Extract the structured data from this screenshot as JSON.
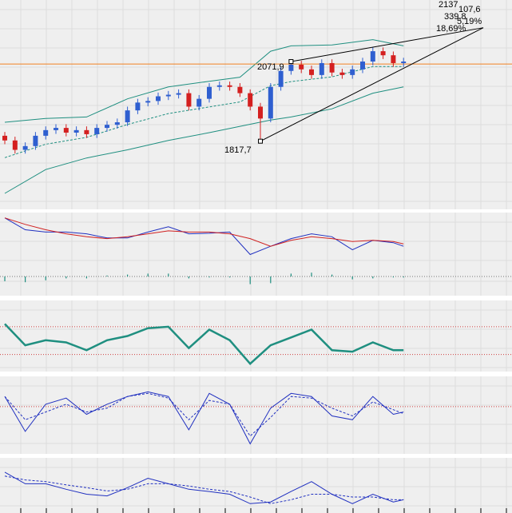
{
  "chart_data": [
    {
      "type": "candlestick",
      "x": [
        0,
        1,
        2,
        3,
        4,
        5,
        6,
        7,
        8,
        9,
        10,
        11,
        12,
        13,
        14,
        15,
        16,
        17,
        18,
        19,
        20,
        21,
        22,
        23,
        24,
        25,
        26,
        27,
        28,
        29,
        30,
        31,
        32,
        33,
        34,
        35,
        36,
        37,
        38,
        39
      ],
      "open": [
        1835,
        1820,
        1790,
        1802,
        1835,
        1853,
        1860,
        1845,
        1853,
        1840,
        1860,
        1870,
        1878,
        1916,
        1941,
        1946,
        1961,
        1966,
        1971,
        1928,
        1953,
        1991,
        1996,
        1991,
        1971,
        1928,
        1890,
        1991,
        2042,
        2062,
        2047,
        2029,
        2067,
        2037,
        2029,
        2047,
        2072,
        2105,
        2092,
        2067
      ],
      "high": [
        1847,
        1832,
        1814,
        1847,
        1865,
        1872,
        1872,
        1865,
        1865,
        1872,
        1882,
        1890,
        1928,
        1953,
        1958,
        1973,
        1978,
        1983,
        1983,
        1965,
        2003,
        2008,
        2008,
        2003,
        1983,
        1940,
        2003,
        2054,
        2071.9,
        2074,
        2059,
        2079,
        2079,
        2049,
        2059,
        2084,
        2117,
        2117,
        2104,
        2084
      ],
      "low": [
        1808,
        1778,
        1778,
        1790,
        1823,
        1841,
        1833,
        1833,
        1828,
        1828,
        1848,
        1858,
        1866,
        1904,
        1929,
        1934,
        1949,
        1954,
        1916,
        1916,
        1941,
        1979,
        1979,
        1959,
        1916,
        1817.7,
        1878,
        1979,
        2030,
        2035,
        2017,
        2017,
        2025,
        2017,
        2017,
        2035,
        2060,
        2080,
        2055,
        2055
      ],
      "close": [
        1820,
        1790,
        1802,
        1835,
        1853,
        1860,
        1845,
        1853,
        1840,
        1860,
        1870,
        1878,
        1916,
        1941,
        1946,
        1961,
        1966,
        1971,
        1928,
        1953,
        1991,
        1996,
        1991,
        1971,
        1928,
        1890,
        1991,
        2042,
        2062,
        2047,
        2029,
        2067,
        2037,
        2029,
        2047,
        2072,
        2105,
        2092,
        2067,
        2072
      ],
      "up_color": "#2f5fd0",
      "down_color": "#d42020",
      "bands_x": [
        0,
        4,
        8,
        12,
        16,
        20,
        23,
        26,
        28,
        32,
        36,
        39
      ],
      "bands": [
        {
          "color": "#1f8f80",
          "values": [
            1878,
            1890,
            1895,
            1953,
            1991,
            2009,
            2022,
            2105,
            2122,
            2125,
            2142,
            2122
          ]
        },
        {
          "color": "#1f8f80",
          "dash": true,
          "values": [
            1765,
            1808,
            1830,
            1871,
            1906,
            1927,
            1943,
            1995,
            2008,
            2023,
            2056,
            2056
          ]
        },
        {
          "color": "#1f8f80",
          "values": [
            1651,
            1727,
            1764,
            1790,
            1820,
            1845,
            1865,
            1885,
            1895,
            1921,
            1971,
            1991
          ]
        }
      ],
      "hline": 2064,
      "hline_color": "#f08020",
      "trendlines": [
        {
          "x": [
            25,
            46.8
          ],
          "y": [
            1817.7,
            2180
          ]
        },
        {
          "x": [
            28,
            46.8
          ],
          "y": [
            2071.9,
            2180
          ]
        }
      ],
      "annotations": [
        "2137",
        "107,6",
        "339,8",
        "5,19%",
        "18,69%",
        "2071,9",
        "1817,7"
      ],
      "xlim": [
        -0.47,
        49.61
      ],
      "ylim": [
        1600,
        2268.5
      ]
    },
    {
      "type": "line",
      "x": [
        0,
        2,
        4,
        6,
        8,
        10,
        12,
        14,
        16,
        18,
        20,
        22,
        24,
        26,
        28,
        30,
        32,
        34,
        36,
        38,
        39
      ],
      "series": [
        {
          "color": "#2030c0",
          "values": [
            91,
            71,
            67,
            67,
            64,
            57,
            57,
            67,
            76,
            64,
            65,
            67,
            29,
            43,
            56,
            64,
            59,
            37,
            53,
            49,
            43
          ]
        },
        {
          "color": "#d02020",
          "values": [
            91,
            80,
            71,
            64,
            59,
            56,
            59,
            64,
            69,
            67,
            67,
            64,
            56,
            43,
            53,
            59,
            56,
            51,
            53,
            51,
            47
          ]
        }
      ],
      "xlim": [
        -0.47,
        49.61
      ],
      "ylim": [
        0,
        100
      ]
    },
    {
      "type": "bar",
      "x": [
        0,
        2,
        4,
        6,
        8,
        10,
        12,
        14,
        16,
        18,
        20,
        22,
        24,
        26,
        28,
        30,
        32,
        34,
        36,
        38,
        39
      ],
      "values": [
        -5,
        -6,
        -4,
        -2,
        -2,
        1,
        2,
        3,
        3,
        -2,
        -1,
        -1,
        -8,
        -7,
        3,
        4,
        2,
        -3,
        -2,
        -1,
        -1
      ],
      "color": "#1f8f80",
      "xlim": [
        -0.47,
        49.61
      ],
      "ylim": [
        -20,
        5
      ]
    },
    {
      "type": "line",
      "x": [
        0,
        2,
        4,
        6,
        8,
        10,
        12,
        14,
        16,
        18,
        20,
        22,
        24,
        26,
        28,
        30,
        32,
        34,
        36,
        38,
        39
      ],
      "series": [
        {
          "color": "#1f8f80",
          "width": 2.5,
          "values": [
            67,
            37,
            44,
            41,
            30,
            44,
            50,
            61,
            63,
            33,
            59,
            44,
            11,
            37,
            48,
            59,
            30,
            28,
            41,
            30,
            30
          ]
        }
      ],
      "hlines": [
        63,
        24
      ],
      "hline_color": "#d04040",
      "xlim": [
        -0.47,
        49.61
      ],
      "ylim": [
        0,
        100
      ]
    },
    {
      "type": "line",
      "x": [
        0,
        2,
        4,
        6,
        8,
        10,
        12,
        14,
        16,
        18,
        20,
        22,
        24,
        26,
        28,
        30,
        32,
        34,
        36,
        38,
        39
      ],
      "series": [
        {
          "color": "#2030c0",
          "values": [
            74,
            29,
            64,
            72,
            51,
            64,
            74,
            80,
            74,
            31,
            78,
            64,
            13,
            59,
            78,
            74,
            49,
            44,
            74,
            51,
            54
          ]
        },
        {
          "color": "#2030c0",
          "dash": true,
          "values": [
            74,
            44,
            54,
            64,
            54,
            59,
            74,
            78,
            72,
            44,
            69,
            64,
            23,
            47,
            74,
            72,
            59,
            49,
            67,
            57,
            52
          ]
        }
      ],
      "hlines": [
        61
      ],
      "hline_color": "#d04040",
      "xlim": [
        -0.47,
        49.61
      ],
      "ylim": [
        0,
        100
      ]
    },
    {
      "type": "line",
      "x": [
        0,
        2,
        4,
        6,
        8,
        10,
        12,
        14,
        16,
        18,
        20,
        22,
        24,
        26,
        28,
        30,
        32,
        34,
        36,
        38,
        39
      ],
      "series": [
        {
          "color": "#2030c0",
          "values": [
            74,
            53,
            53,
            43,
            34,
            31,
            46,
            63,
            53,
            43,
            39,
            34,
            17,
            20,
            39,
            57,
            34,
            17,
            34,
            20,
            24
          ]
        },
        {
          "color": "#2030c0",
          "dash": true,
          "values": [
            67,
            60,
            57,
            51,
            46,
            40,
            43,
            53,
            53,
            49,
            43,
            39,
            29,
            17,
            24,
            34,
            34,
            29,
            29,
            24,
            24
          ]
        }
      ],
      "xlim": [
        -0.47,
        49.61
      ],
      "ylim": [
        0,
        100
      ]
    }
  ]
}
